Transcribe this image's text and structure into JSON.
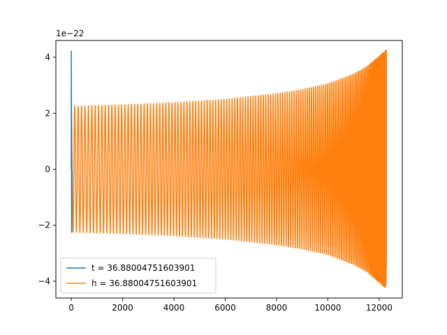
{
  "chart_data": {
    "type": "line",
    "title": "",
    "xlabel": "",
    "ylabel": "",
    "y_offset_text": "1e−22",
    "xlim": [
      -600,
      12900
    ],
    "ylim": [
      -4.6,
      4.6
    ],
    "grid": false,
    "legend_placement": "lower-left",
    "x_ticks": [
      0,
      2000,
      4000,
      6000,
      8000,
      10000,
      12000
    ],
    "x_tick_labels": [
      "0",
      "2000",
      "4000",
      "6000",
      "8000",
      "10000",
      "12000"
    ],
    "y_ticks": [
      -4,
      -2,
      0,
      2,
      4
    ],
    "y_tick_labels": [
      "−4",
      "−2",
      "0",
      "2",
      "4"
    ],
    "series": [
      {
        "name": "t = 36.88004751603901",
        "color": "#1f77b4",
        "kind": "spike",
        "points": [
          [
            0,
            0
          ],
          [
            0,
            4.22
          ],
          [
            15,
            -2.25
          ],
          [
            30,
            0
          ]
        ]
      },
      {
        "name": "h = 36.88004751603901",
        "color": "#ff7f0e",
        "kind": "chirp",
        "x_start": 0,
        "x_end": 12280,
        "cycles": 140,
        "amplitude": [
          [
            0,
            2.25
          ],
          [
            2000,
            2.3
          ],
          [
            4000,
            2.38
          ],
          [
            6000,
            2.5
          ],
          [
            8000,
            2.7
          ],
          [
            9000,
            2.85
          ],
          [
            10000,
            3.05
          ],
          [
            11000,
            3.4
          ],
          [
            11500,
            3.65
          ],
          [
            12000,
            4.05
          ],
          [
            12280,
            4.27
          ]
        ]
      }
    ]
  }
}
